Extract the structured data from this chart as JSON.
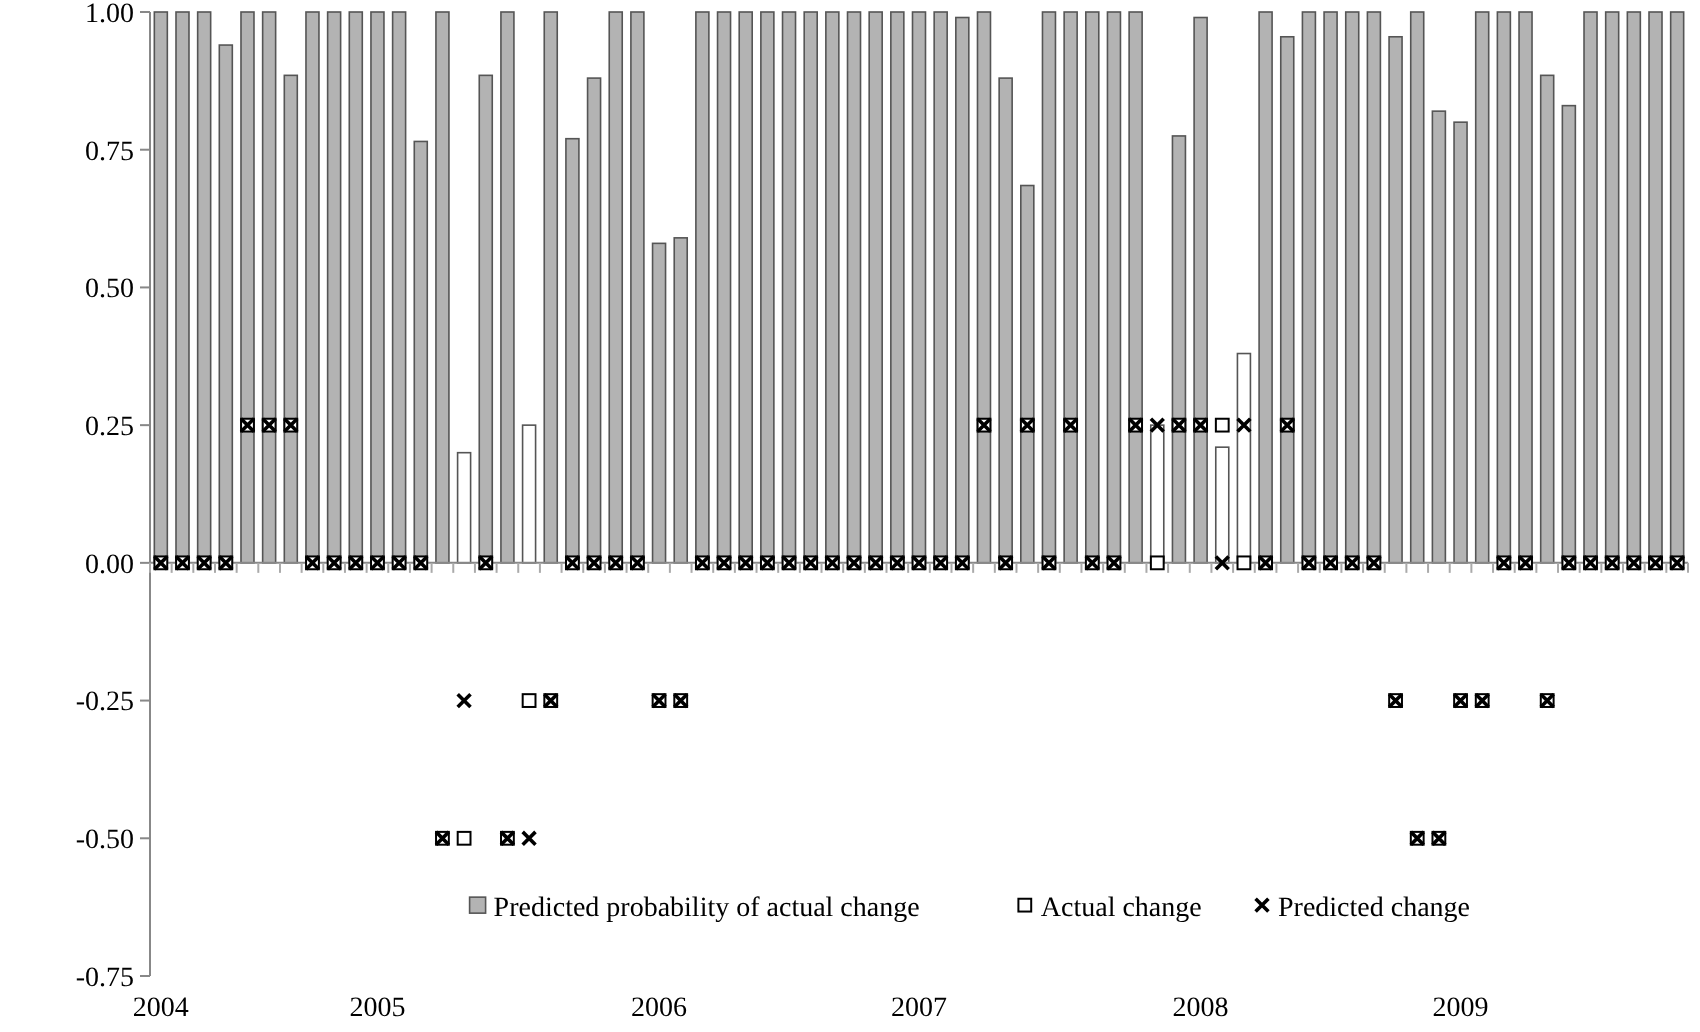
{
  "chart_data": {
    "type": "bar",
    "categories": [
      "2004",
      null,
      null,
      null,
      null,
      null,
      null,
      null,
      null,
      null,
      "2005",
      null,
      null,
      null,
      null,
      null,
      null,
      null,
      null,
      null,
      null,
      null,
      null,
      "2006",
      null,
      null,
      null,
      null,
      null,
      null,
      null,
      null,
      null,
      null,
      null,
      "2007",
      null,
      null,
      null,
      null,
      null,
      null,
      null,
      null,
      null,
      null,
      null,
      null,
      "2008",
      null,
      null,
      null,
      null,
      null,
      null,
      null,
      null,
      null,
      null,
      null,
      "2009",
      null,
      null,
      null,
      null,
      null,
      null,
      null,
      null,
      null,
      null
    ],
    "series": [
      {
        "name": "Predicted probability of actual change",
        "color": "#b3b3b3",
        "colors": [
          "#b3b3b3",
          "#b3b3b3",
          "#b3b3b3",
          "#b3b3b3",
          "#b3b3b3",
          "#b3b3b3",
          "#b3b3b3",
          "#b3b3b3",
          "#b3b3b3",
          "#b3b3b3",
          "#b3b3b3",
          "#b3b3b3",
          "#b3b3b3",
          "#b3b3b3",
          "#ffffff",
          "#b3b3b3",
          "#b3b3b3",
          "#ffffff",
          "#b3b3b3",
          "#b3b3b3",
          "#b3b3b3",
          "#b3b3b3",
          "#b3b3b3",
          "#b3b3b3",
          "#b3b3b3",
          "#b3b3b3",
          "#b3b3b3",
          "#b3b3b3",
          "#b3b3b3",
          "#b3b3b3",
          "#b3b3b3",
          "#b3b3b3",
          "#b3b3b3",
          "#b3b3b3",
          "#b3b3b3",
          "#b3b3b3",
          "#b3b3b3",
          "#b3b3b3",
          "#b3b3b3",
          "#b3b3b3",
          "#b3b3b3",
          "#b3b3b3",
          "#b3b3b3",
          "#b3b3b3",
          "#b3b3b3",
          "#b3b3b3",
          "#ffffff",
          "#b3b3b3",
          "#b3b3b3",
          "#ffffff",
          "#ffffff",
          "#b3b3b3",
          "#b3b3b3",
          "#b3b3b3",
          "#b3b3b3",
          "#b3b3b3",
          "#b3b3b3",
          "#b3b3b3",
          "#b3b3b3",
          "#b3b3b3",
          "#b3b3b3",
          "#b3b3b3",
          "#b3b3b3",
          "#b3b3b3",
          "#b3b3b3",
          "#b3b3b3",
          "#b3b3b3",
          "#b3b3b3",
          "#b3b3b3",
          "#b3b3b3",
          "#b3b3b3"
        ],
        "values": [
          1,
          1,
          1,
          0.94,
          1,
          1,
          0.885,
          1,
          1,
          1,
          1,
          1,
          0.765,
          1,
          0.2,
          0.885,
          1,
          0.25,
          1,
          0.77,
          0.88,
          1,
          1,
          0.58,
          0.59,
          1,
          1,
          1,
          1,
          1,
          1,
          1,
          1,
          1,
          1,
          1,
          1,
          0.99,
          1,
          0.88,
          0.685,
          1,
          1,
          1,
          1,
          1,
          0.25,
          0.775,
          0.99,
          0.21,
          0.38,
          1,
          0.955,
          1,
          1,
          1,
          1,
          0.955,
          1,
          0.82,
          0.8,
          1,
          1,
          1,
          0.885,
          0.83,
          1,
          1,
          1,
          1,
          1
        ]
      },
      {
        "name": "Actual change",
        "type": "scatter",
        "marker": "square",
        "color": "#ffffff",
        "values": [
          0,
          0,
          0,
          0,
          0.25,
          0.25,
          0.25,
          0,
          0,
          0,
          0,
          0,
          0,
          -0.5,
          -0.5,
          0,
          -0.5,
          -0.25,
          -0.25,
          0,
          0,
          0,
          0,
          -0.25,
          -0.25,
          0,
          0,
          0,
          0,
          0,
          0,
          0,
          0,
          0,
          0,
          0,
          0,
          0,
          0.25,
          0,
          0.25,
          0,
          0.25,
          0,
          0,
          0.25,
          0,
          0.25,
          0.25,
          0.25,
          0,
          0,
          0.25,
          0,
          0,
          0,
          0,
          -0.25,
          -0.5,
          -0.5,
          -0.25,
          -0.25,
          0,
          0,
          -0.25,
          0,
          0,
          0,
          0,
          0,
          0
        ]
      },
      {
        "name": "Predicted change",
        "type": "scatter",
        "marker": "cross",
        "color": "#000000",
        "values": [
          0,
          0,
          0,
          0,
          0.25,
          0.25,
          0.25,
          0,
          0,
          0,
          0,
          0,
          0,
          -0.5,
          -0.25,
          0,
          -0.5,
          -0.5,
          -0.25,
          0,
          0,
          0,
          0,
          -0.25,
          -0.25,
          0,
          0,
          0,
          0,
          0,
          0,
          0,
          0,
          0,
          0,
          0,
          0,
          0,
          0.25,
          0,
          0.25,
          0,
          0.25,
          0,
          0,
          0.25,
          0.25,
          0.25,
          0.25,
          0,
          0.25,
          0,
          0.25,
          0,
          0,
          0,
          0,
          -0.25,
          -0.5,
          -0.5,
          -0.25,
          -0.25,
          0,
          0,
          -0.25,
          0,
          0,
          0,
          0,
          0,
          0
        ]
      }
    ],
    "ylim": [
      -0.75,
      1
    ],
    "yticks": [
      {
        "value": 1,
        "label": "1.00"
      },
      {
        "value": 0.75,
        "label": "0.75"
      },
      {
        "value": 0.5,
        "label": "0.50"
      },
      {
        "value": 0.25,
        "label": "0.25"
      },
      {
        "value": 0,
        "label": "0.00"
      },
      {
        "value": -0.25,
        "label": "-0.25"
      },
      {
        "value": -0.5,
        "label": "-0.50"
      },
      {
        "value": -0.75,
        "label": "-0.75"
      }
    ],
    "legend": "bottom"
  }
}
